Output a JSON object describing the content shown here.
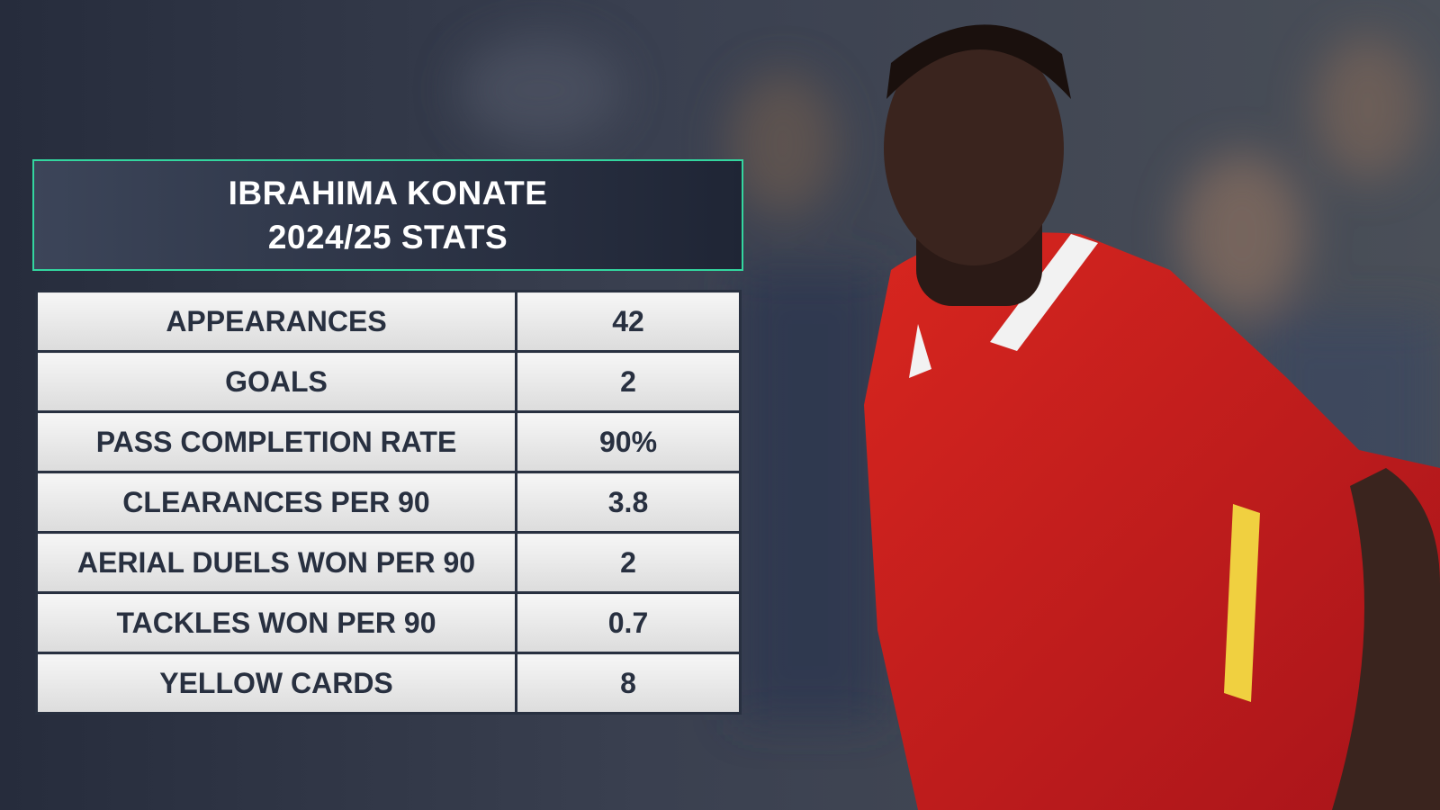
{
  "header": {
    "title_lines": [
      "IBRAHIMA KONATE",
      "2024/25 STATS"
    ]
  },
  "table": {
    "rows": [
      [
        "APPEARANCES",
        "42"
      ],
      [
        "GOALS",
        "2"
      ],
      [
        "PASS COMPLETION RATE",
        "90%"
      ],
      [
        "CLEARANCES PER 90",
        "3.8"
      ],
      [
        "AERIAL DUELS WON PER 90",
        "2"
      ],
      [
        "TACKLES WON PER 90",
        "0.7"
      ],
      [
        "YELLOW CARDS",
        "8"
      ]
    ]
  }
}
